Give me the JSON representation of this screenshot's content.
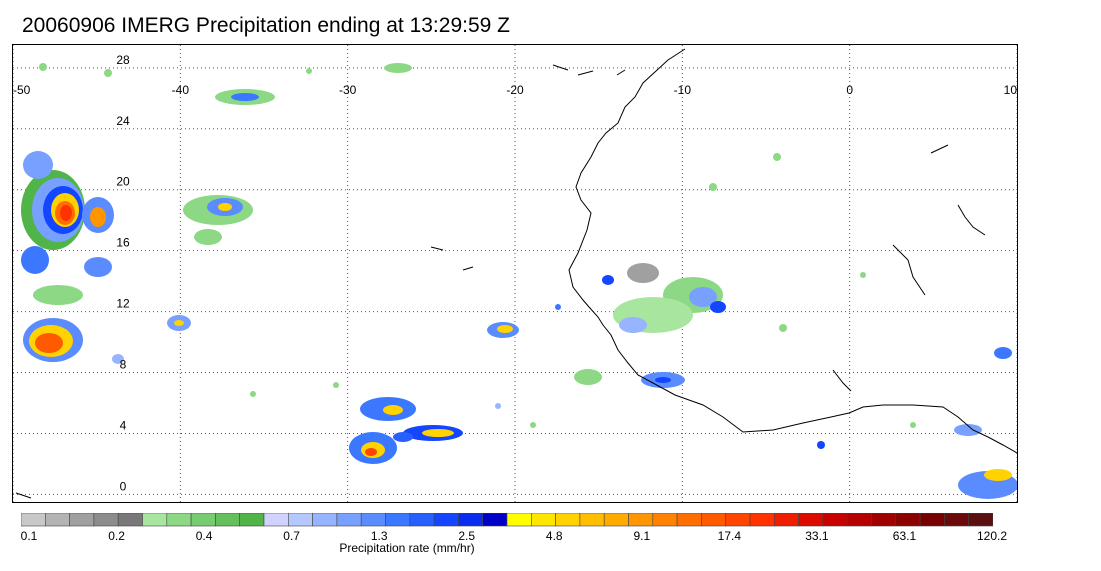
{
  "title": "20060906 IMERG Precipitation ending at 13:29:59 Z",
  "map": {
    "lon_range": [
      -50,
      10
    ],
    "lat_range": [
      -0.5,
      29.5
    ],
    "lon_ticks": [
      "-50",
      "-40",
      "-30",
      "-20",
      "-10",
      "0",
      "10"
    ],
    "lat_ticks": [
      "0",
      "4",
      "8",
      "12",
      "16",
      "20",
      "24",
      "28"
    ],
    "gridlines": "dotted"
  },
  "colorbar": {
    "label": "Precipitation rate (mm/hr)",
    "tick_labels": [
      "0.1",
      "0.2",
      "0.4",
      "0.7",
      "1.3",
      "2.5",
      "4.8",
      "9.1",
      "17.4",
      "33.1",
      "63.1",
      "120.2"
    ],
    "colors": [
      "#c8c8c8",
      "#b4b4b4",
      "#a0a0a0",
      "#8c8c8c",
      "#787878",
      "#a8e6a0",
      "#8cd884",
      "#78cc70",
      "#64c05c",
      "#50b448",
      "#d2d2ff",
      "#b4c8ff",
      "#96b4ff",
      "#78a0ff",
      "#5a8cff",
      "#3c78ff",
      "#2860ff",
      "#1446ff",
      "#0a2cf0",
      "#0000c8",
      "#ffff00",
      "#ffe600",
      "#ffd200",
      "#ffbe00",
      "#ffaa00",
      "#ff9600",
      "#ff8200",
      "#ff6e00",
      "#ff5a00",
      "#ff4600",
      "#ff3200",
      "#f01e00",
      "#dc0a00",
      "#c80000",
      "#b40000",
      "#a00000",
      "#8c0000",
      "#780000",
      "#6a0a0a",
      "#5a1010"
    ]
  }
}
